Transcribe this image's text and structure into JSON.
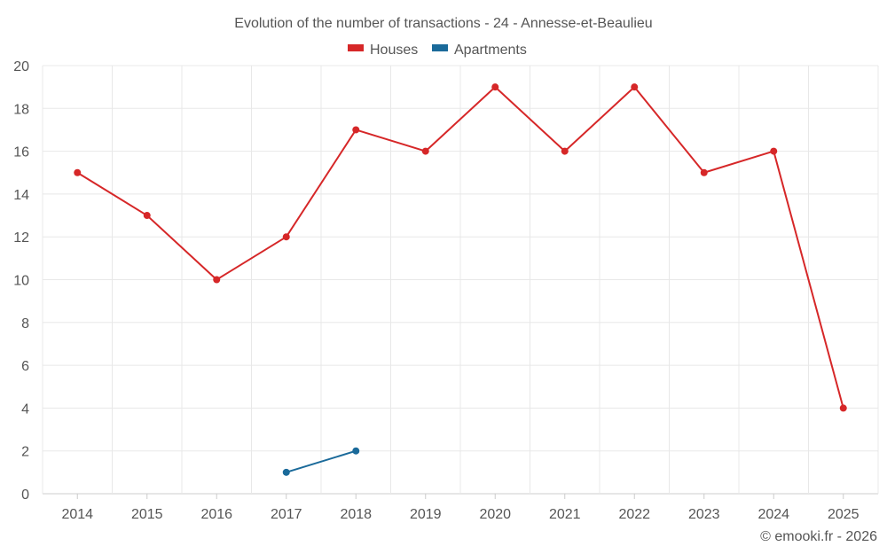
{
  "chart_data": {
    "type": "line",
    "title": "Evolution of the number of transactions - 24 - Annesse-et-Beaulieu",
    "categories": [
      "2014",
      "2015",
      "2016",
      "2017",
      "2018",
      "2019",
      "2020",
      "2021",
      "2022",
      "2023",
      "2024",
      "2025"
    ],
    "series": [
      {
        "name": "Houses",
        "color": "#d62728",
        "values": [
          15,
          13,
          10,
          12,
          17,
          16,
          19,
          16,
          19,
          15,
          16,
          4
        ]
      },
      {
        "name": "Apartments",
        "color": "#1a6a9a",
        "values": [
          null,
          null,
          null,
          1,
          2,
          null,
          null,
          null,
          null,
          null,
          null,
          null
        ]
      }
    ],
    "ylim": [
      0,
      20
    ],
    "yticks": [
      0,
      2,
      4,
      6,
      8,
      10,
      12,
      14,
      16,
      18,
      20
    ],
    "xlabel": "",
    "ylabel": "",
    "grid": true,
    "legend": "top-center"
  },
  "credit": "© emooki.fr - 2026"
}
